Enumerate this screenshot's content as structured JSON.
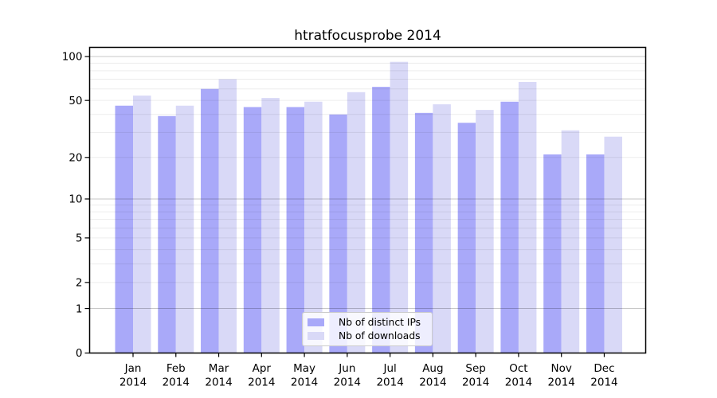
{
  "chart_data": {
    "type": "bar",
    "title": "htratfocusprobe 2014",
    "categories": [
      {
        "month": "Jan",
        "year": "2014"
      },
      {
        "month": "Feb",
        "year": "2014"
      },
      {
        "month": "Mar",
        "year": "2014"
      },
      {
        "month": "Apr",
        "year": "2014"
      },
      {
        "month": "May",
        "year": "2014"
      },
      {
        "month": "Jun",
        "year": "2014"
      },
      {
        "month": "Jul",
        "year": "2014"
      },
      {
        "month": "Aug",
        "year": "2014"
      },
      {
        "month": "Sep",
        "year": "2014"
      },
      {
        "month": "Oct",
        "year": "2014"
      },
      {
        "month": "Nov",
        "year": "2014"
      },
      {
        "month": "Dec",
        "year": "2014"
      }
    ],
    "series": [
      {
        "name": "Nb of distinct IPs",
        "color": "#a9a9f9",
        "values": [
          46,
          39,
          60,
          45,
          45,
          40,
          62,
          41,
          35,
          49,
          21,
          21
        ]
      },
      {
        "name": "Nb of downloads",
        "color": "#d9d9f7",
        "values": [
          54,
          46,
          70,
          52,
          49,
          57,
          92,
          47,
          43,
          67,
          31,
          28
        ]
      }
    ],
    "y_axis": {
      "scale": "log1p",
      "ticks": [
        100,
        50,
        20,
        10,
        5,
        2,
        1,
        0
      ],
      "top_value": 115.5,
      "major_gridlines": [
        1,
        10,
        100
      ],
      "minor_gridlines": [
        2,
        3,
        4,
        5,
        6,
        7,
        8,
        9,
        20,
        30,
        40,
        50,
        60,
        70,
        80,
        90
      ]
    },
    "ylim": [
      0,
      115.5
    ],
    "grid": true,
    "legend_position": "lower-center",
    "colors": {
      "major_grid": "#c7c7c7",
      "minor_grid": "#ececec",
      "axis": "#000000",
      "background": "#ffffff"
    }
  }
}
